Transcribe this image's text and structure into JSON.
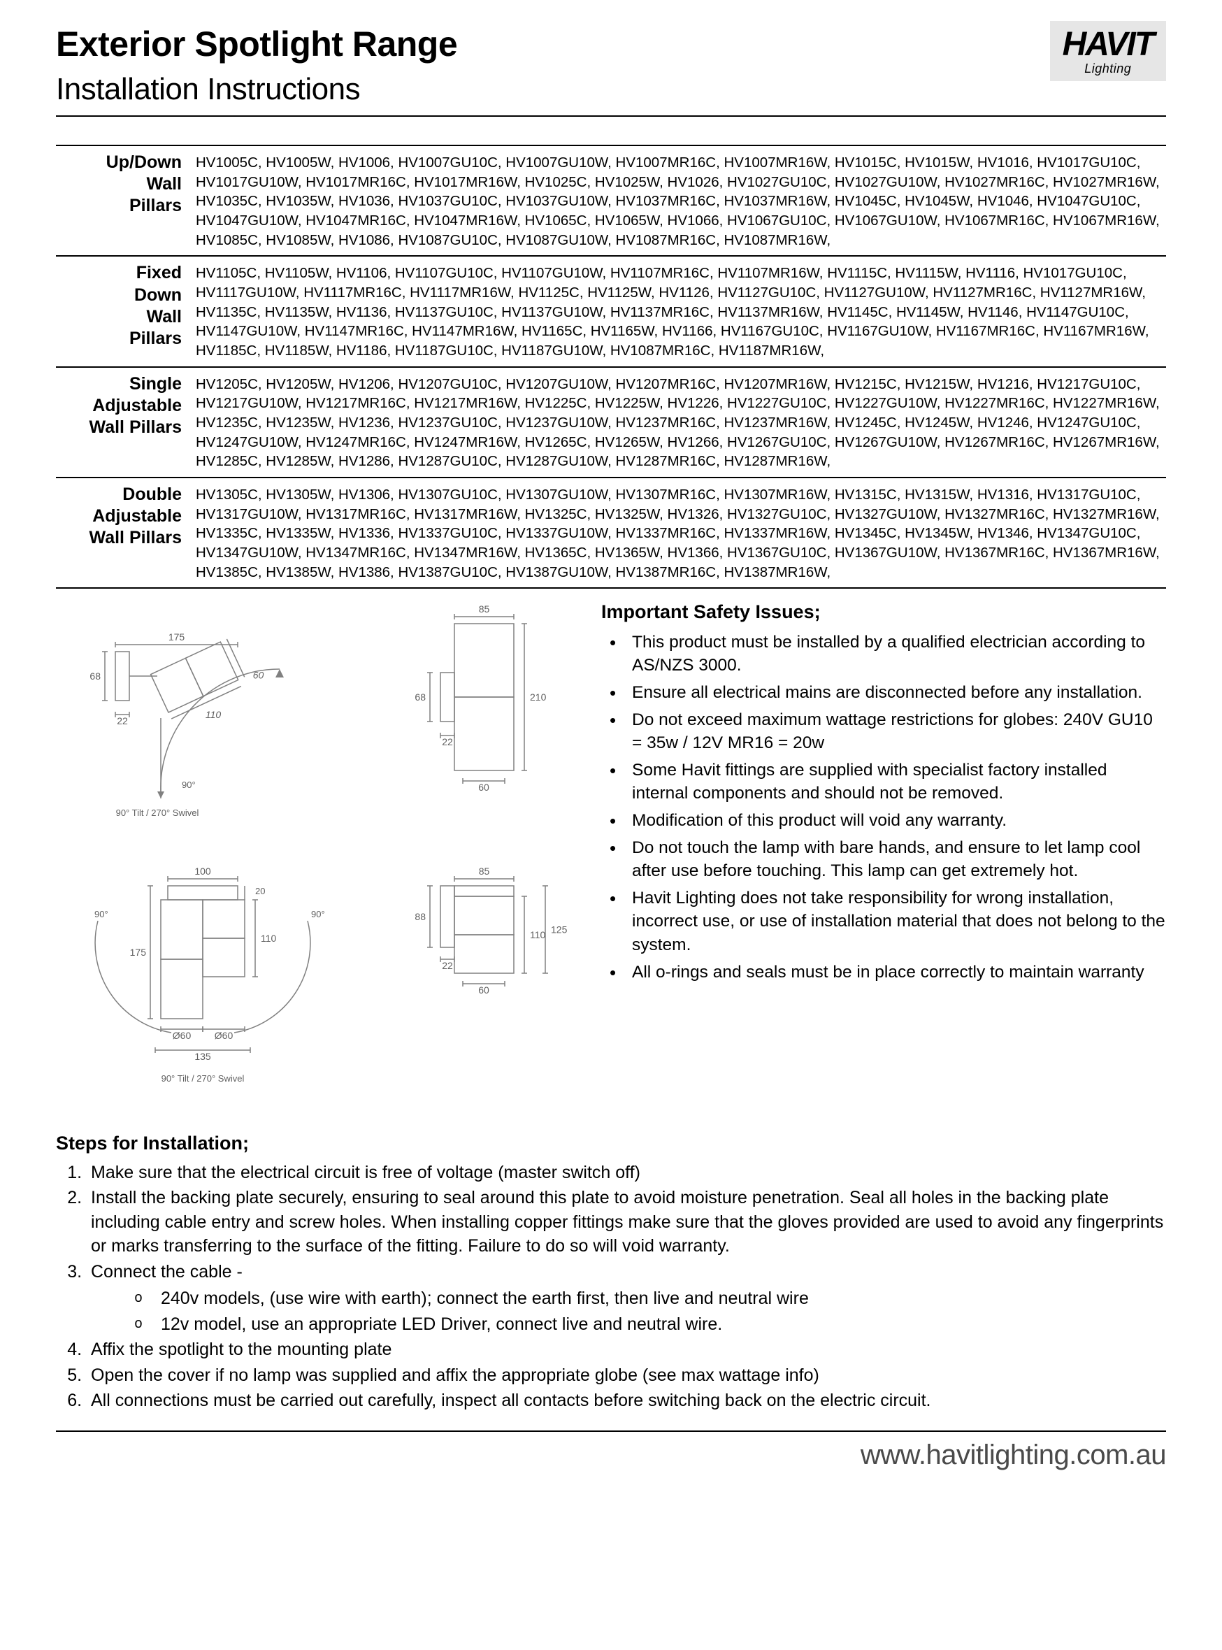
{
  "header": {
    "title": "Exterior Spotlight Range",
    "subtitle": "Installation Instructions",
    "logo_brand": "HAVIT",
    "logo_sub": "Lighting"
  },
  "categories": [
    {
      "label": "Up/Down\nWall\nPillars",
      "codes": "HV1005C, HV1005W, HV1006, HV1007GU10C, HV1007GU10W, HV1007MR16C, HV1007MR16W, HV1015C, HV1015W, HV1016, HV1017GU10C, HV1017GU10W, HV1017MR16C, HV1017MR16W, HV1025C, HV1025W, HV1026, HV1027GU10C, HV1027GU10W, HV1027MR16C, HV1027MR16W, HV1035C, HV1035W, HV1036, HV1037GU10C, HV1037GU10W, HV1037MR16C, HV1037MR16W, HV1045C, HV1045W, HV1046, HV1047GU10C, HV1047GU10W, HV1047MR16C, HV1047MR16W, HV1065C, HV1065W, HV1066, HV1067GU10C, HV1067GU10W, HV1067MR16C, HV1067MR16W, HV1085C, HV1085W, HV1086, HV1087GU10C, HV1087GU10W, HV1087MR16C, HV1087MR16W,"
    },
    {
      "label": "Fixed\nDown\nWall\nPillars",
      "codes": "HV1105C, HV1105W, HV1106, HV1107GU10C, HV1107GU10W, HV1107MR16C, HV1107MR16W, HV1115C, HV1115W, HV1116, HV1017GU10C, HV1117GU10W, HV1117MR16C, HV1117MR16W, HV1125C, HV1125W, HV1126, HV1127GU10C, HV1127GU10W, HV1127MR16C, HV1127MR16W, HV1135C, HV1135W, HV1136, HV1137GU10C, HV1137GU10W, HV1137MR16C, HV1137MR16W, HV1145C, HV1145W, HV1146, HV1147GU10C, HV1147GU10W, HV1147MR16C, HV1147MR16W, HV1165C, HV1165W, HV1166, HV1167GU10C, HV1167GU10W, HV1167MR16C, HV1167MR16W, HV1185C, HV1185W, HV1186, HV1187GU10C, HV1187GU10W, HV1087MR16C, HV1187MR16W,"
    },
    {
      "label": "Single\nAdjustable\nWall Pillars",
      "codes": "HV1205C, HV1205W, HV1206, HV1207GU10C, HV1207GU10W, HV1207MR16C, HV1207MR16W, HV1215C, HV1215W, HV1216, HV1217GU10C, HV1217GU10W, HV1217MR16C, HV1217MR16W, HV1225C, HV1225W, HV1226, HV1227GU10C, HV1227GU10W, HV1227MR16C, HV1227MR16W, HV1235C, HV1235W, HV1236, HV1237GU10C, HV1237GU10W, HV1237MR16C, HV1237MR16W, HV1245C, HV1245W, HV1246, HV1247GU10C, HV1247GU10W, HV1247MR16C, HV1247MR16W, HV1265C, HV1265W, HV1266, HV1267GU10C, HV1267GU10W, HV1267MR16C, HV1267MR16W, HV1285C, HV1285W, HV1286, HV1287GU10C, HV1287GU10W, HV1287MR16C, HV1287MR16W,"
    },
    {
      "label": "Double\nAdjustable\nWall Pillars",
      "codes": "HV1305C, HV1305W, HV1306, HV1307GU10C, HV1307GU10W, HV1307MR16C, HV1307MR16W, HV1315C, HV1315W, HV1316, HV1317GU10C, HV1317GU10W, HV1317MR16C, HV1317MR16W, HV1325C, HV1325W, HV1326, HV1327GU10C, HV1327GU10W, HV1327MR16C, HV1327MR16W, HV1335C, HV1335W, HV1336, HV1337GU10C, HV1337GU10W, HV1337MR16C, HV1337MR16W, HV1345C, HV1345W, HV1346, HV1347GU10C, HV1347GU10W, HV1347MR16C, HV1347MR16W, HV1365C, HV1365W, HV1366, HV1367GU10C, HV1367GU10W, HV1367MR16C, HV1367MR16W, HV1385C, HV1385W, HV1386, HV1387GU10C, HV1387GU10W, HV1387MR16C, HV1387MR16W,"
    }
  ],
  "safety": {
    "heading": "Important Safety Issues;",
    "items": [
      "This product must be installed by a qualified electrician according  to  AS/NZS  3000.",
      "Ensure all electrical mains are disconnected before  any  installation.",
      "Do  not  exceed  maximum   wattage restrictions for  globes:  240V  GU10  =  35w  / 12V  MR16  =  20w",
      "Some  Havit  fittings  are  supplied  with specialist  factory  installed  internal components  and  should  not  be  removed.",
      "Modification of this product will void any warranty.",
      "Do not touch the lamp with bare hands, and ensure to let lamp cool after use before touching. This lamp can get extremely hot.",
      "Havit Lighting does not take responsibility for wrong installation, incorrect use, or use of installation material that does not belong to the system.",
      "All o-rings and seals must be in place correctly to maintain warranty"
    ]
  },
  "steps": {
    "heading": "Steps for Installation;",
    "items": [
      {
        "text": "Make sure that the electrical circuit is free of voltage (master switch off)"
      },
      {
        "text": "Install the backing plate securely, ensuring to seal around this plate to avoid moisture penetration. Seal all holes in the backing plate including cable entry and screw holes.  When installing copper fittings make sure that the gloves provided are used to avoid any fingerprints or marks transferring to the surface of the fitting. Failure to do so will void warranty."
      },
      {
        "text": "Connect the cable -",
        "sub": [
          "240v models, (use wire with earth); connect the earth first, then live and neutral wire",
          "12v model, use an appropriate LED Driver, connect live and neutral wire."
        ]
      },
      {
        "text": "Affix the spotlight to the mounting plate"
      },
      {
        "text": "Open the cover if no lamp was supplied and affix the appropriate globe (see max wattage info)"
      },
      {
        "text": "All connections must be carried out carefully, inspect all contacts before switching back on the electric circuit."
      }
    ]
  },
  "diagrams": {
    "d1": {
      "w175": "175",
      "h68": "68",
      "w22": "22",
      "l110": "110",
      "l60": "60",
      "tilt": "90° Tilt / 270° Swivel",
      "ang90": "90°"
    },
    "d2": {
      "w85": "85",
      "h210": "210",
      "w22": "22",
      "h68": "68",
      "w60": "60"
    },
    "d3": {
      "w100": "100",
      "h20": "20",
      "h175": "175",
      "h110": "110",
      "d60a": "Ø60",
      "d60b": "Ø60",
      "w135": "135",
      "tilt": "90° Tilt / 270° Swivel",
      "ang90": "90°"
    },
    "d4": {
      "w85": "85",
      "h88": "88",
      "w22": "22",
      "h110": "110",
      "h125": "125",
      "w60": "60"
    },
    "stroke": "#808080",
    "text_color": "#606060"
  },
  "footer": {
    "url": "www.havitlighting.com.au"
  }
}
